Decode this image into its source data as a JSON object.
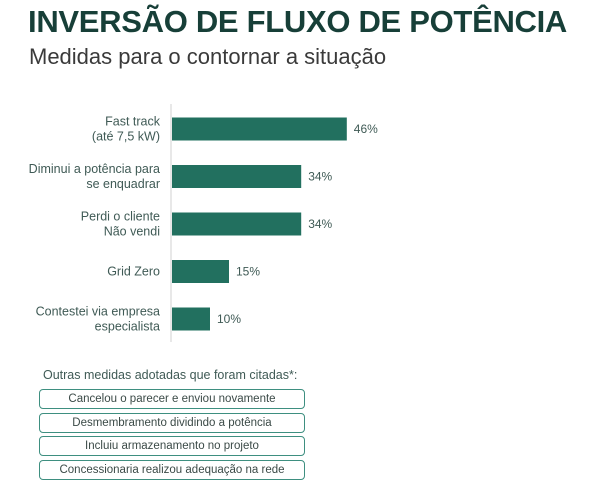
{
  "header": {
    "title": "INVERSÃO DE FLUXO DE POTÊNCIA",
    "subtitle": "Medidas para o contornar a situação"
  },
  "colors": {
    "bar": "#22705f",
    "title": "#173f38",
    "outline": "#3e8f80"
  },
  "chart_data": {
    "type": "bar",
    "orientation": "horizontal",
    "categories": [
      [
        "Fast track",
        "(até 7,5 kW)"
      ],
      [
        "Diminui a potência para",
        "se enquadrar"
      ],
      [
        "Perdi o cliente",
        "Não vendi"
      ],
      [
        "Grid Zero"
      ],
      [
        "Contestei via empresa",
        "especialista"
      ]
    ],
    "values": [
      46,
      34,
      34,
      15,
      10
    ],
    "value_labels": [
      "46%",
      "34%",
      "34%",
      "15%",
      "10%"
    ],
    "unit": "%",
    "xlim": [
      0,
      50
    ],
    "grid": false,
    "legend": "none"
  },
  "others": {
    "title": "Outras medidas adotadas que foram citadas*:",
    "items": [
      "Cancelou o parecer e enviou novamente",
      "Desmembramento dividindo a potência",
      "Incluiu armazenamento no projeto",
      "Concessionaria realizou adequação na rede"
    ]
  }
}
